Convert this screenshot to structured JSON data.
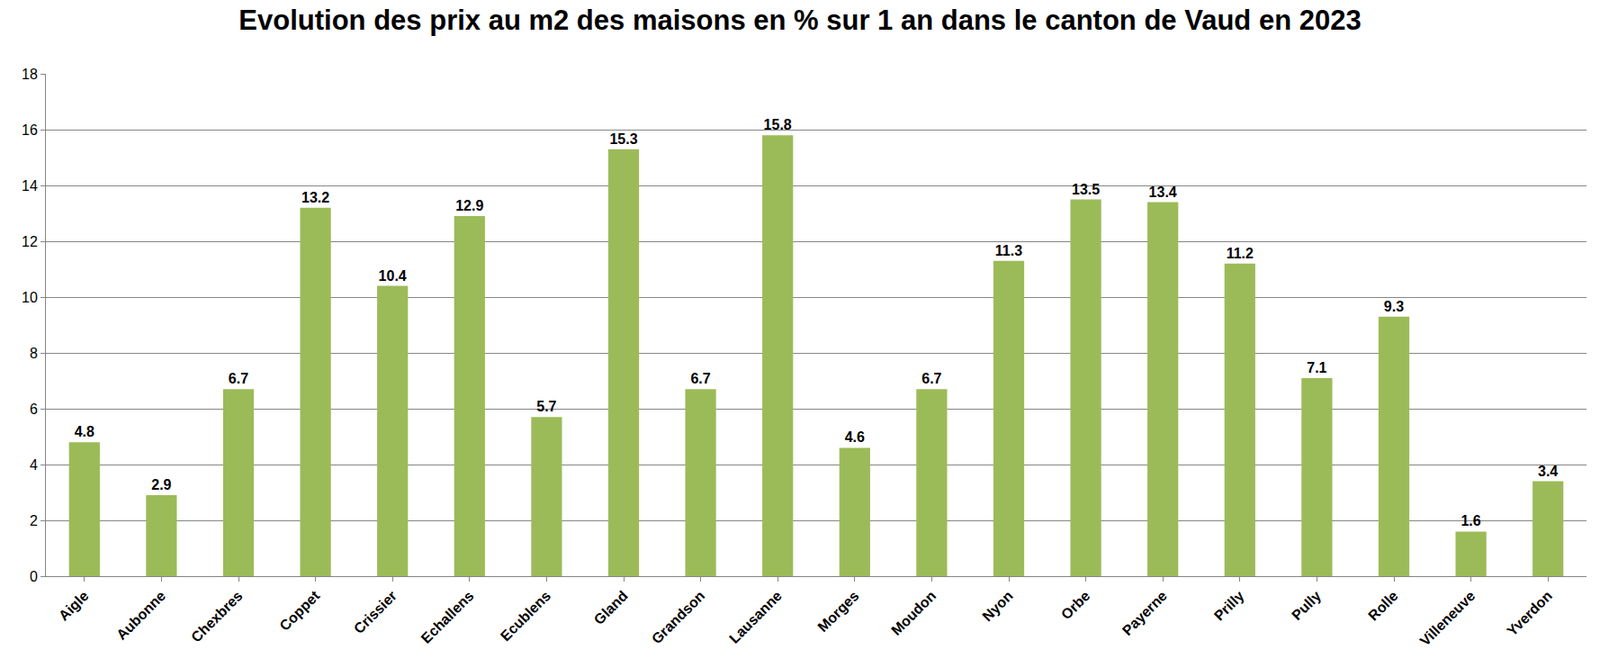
{
  "chart_data": {
    "type": "bar",
    "title": "Evolution des prix au m2 des maisons en % sur 1 an dans le canton de Vaud en 2023",
    "categories": [
      "Aigle",
      "Aubonne",
      "Chexbres",
      "Coppet",
      "Crissier",
      "Echallens",
      "Ecublens",
      "Gland",
      "Grandson",
      "Lausanne",
      "Morges",
      "Moudon",
      "Nyon",
      "Orbe",
      "Payerne",
      "Prilly",
      "Pully",
      "Rolle",
      "Villeneuve",
      "Yverdon"
    ],
    "values": [
      4.8,
      2.9,
      6.7,
      13.2,
      10.4,
      12.9,
      5.7,
      15.3,
      6.7,
      15.8,
      4.6,
      6.7,
      11.3,
      13.5,
      13.4,
      11.2,
      7.1,
      9.3,
      1.6,
      3.4
    ],
    "color": "#9bbb59",
    "ylim": [
      0,
      18
    ],
    "yticks": [
      0,
      2,
      4,
      6,
      8,
      10,
      12,
      14,
      16,
      18
    ],
    "grid": true,
    "data_labels": true
  }
}
